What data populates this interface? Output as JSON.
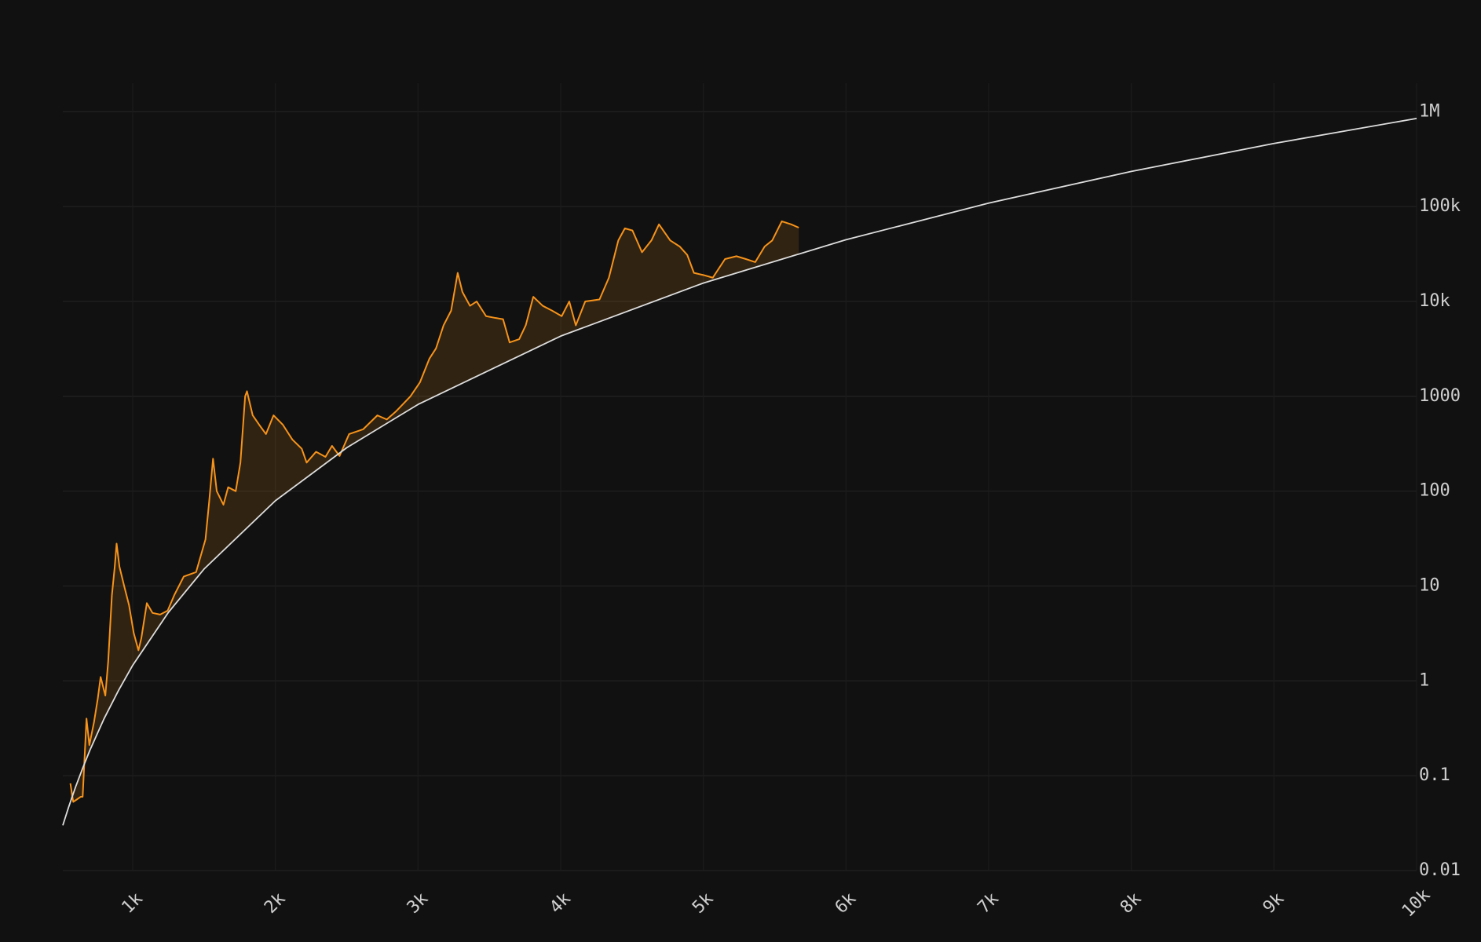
{
  "chart_data": {
    "type": "line",
    "log_y": true,
    "grid": true,
    "xlim": [
      510,
      10000
    ],
    "ylim": [
      0.01,
      2000000
    ],
    "xticks": [
      {
        "value": 1000,
        "label": "1k"
      },
      {
        "value": 2000,
        "label": "2k"
      },
      {
        "value": 3000,
        "label": "3k"
      },
      {
        "value": 4000,
        "label": "4k"
      },
      {
        "value": 5000,
        "label": "5k"
      },
      {
        "value": 6000,
        "label": "6k"
      },
      {
        "value": 7000,
        "label": "7k"
      },
      {
        "value": 8000,
        "label": "8k"
      },
      {
        "value": 9000,
        "label": "9k"
      },
      {
        "value": 10000,
        "label": "10k"
      }
    ],
    "yticks": [
      0.01,
      0.1,
      1,
      10,
      100,
      1000,
      {
        "value": 10000,
        "label": "10k"
      },
      {
        "value": 100000,
        "label": "100k"
      },
      {
        "value": 1000000,
        "label": "1M"
      }
    ],
    "series": [
      {
        "color": "#f7931a",
        "fill": true,
        "x": [
          563,
          583,
          636,
          649,
          676,
          696,
          729,
          755,
          775,
          808,
          828,
          854,
          874,
          887,
          907,
          940,
          974,
          1007,
          1040,
          1060,
          1099,
          1139,
          1192,
          1245,
          1291,
          1358,
          1444,
          1510,
          1536,
          1563,
          1589,
          1636,
          1669,
          1722,
          1755,
          1788,
          1801,
          1841,
          1887,
          1934,
          1987,
          2053,
          2119,
          2185,
          2219,
          2285,
          2351,
          2397,
          2450,
          2517,
          2616,
          2715,
          2781,
          2848,
          2947,
          3013,
          3080,
          3126,
          3179,
          3232,
          3278,
          3311,
          3364,
          3411,
          3477,
          3543,
          3596,
          3642,
          3709,
          3755,
          3808,
          3874,
          3940,
          4007,
          4060,
          4106,
          4172,
          4272,
          4338,
          4404,
          4450,
          4503,
          4570,
          4636,
          4689,
          4768,
          4834,
          4887,
          4934,
          5000,
          5066,
          5152,
          5232,
          5298,
          5364,
          5430,
          5483,
          5550,
          5616,
          5669
        ],
        "values": [
          0.083,
          0.053,
          0.06,
          0.06,
          0.4,
          0.21,
          0.37,
          0.65,
          1.1,
          0.7,
          1.6,
          8,
          16,
          28,
          16,
          10,
          6.3,
          3.2,
          2.1,
          2.8,
          6.6,
          5.2,
          5,
          5.5,
          8,
          12.6,
          14,
          31,
          78,
          220,
          100,
          72,
          110,
          100,
          200,
          1000,
          1130,
          630,
          500,
          400,
          630,
          500,
          350,
          280,
          200,
          260,
          230,
          300,
          235,
          400,
          450,
          630,
          570,
          700,
          1000,
          1400,
          2500,
          3200,
          5600,
          8000,
          20000,
          12600,
          9000,
          10000,
          7000,
          6700,
          6500,
          3700,
          4000,
          5600,
          11200,
          9000,
          8000,
          7000,
          10000,
          5600,
          10000,
          10500,
          17800,
          44000,
          59000,
          56000,
          33000,
          44000,
          65000,
          44000,
          38000,
          31000,
          20000,
          19000,
          17800,
          28000,
          30000,
          28000,
          26000,
          38000,
          44000,
          70000,
          65000,
          60000
        ]
      },
      {
        "color": "#dddddd",
        "fill": false,
        "x": [
          510,
          550,
          600,
          650,
          700,
          800,
          900,
          1000,
          1250,
          1500,
          2000,
          2500,
          3000,
          4000,
          5000,
          6000,
          7000,
          8000,
          9000,
          10000
        ],
        "values": [
          0.03,
          0.0463,
          0.0766,
          0.121,
          0.186,
          0.402,
          0.79,
          1.46,
          5.27,
          15.1,
          79.3,
          287,
          821,
          4315,
          15630,
          44770,
          108900,
          235000,
          463400,
          851000
        ]
      }
    ]
  }
}
